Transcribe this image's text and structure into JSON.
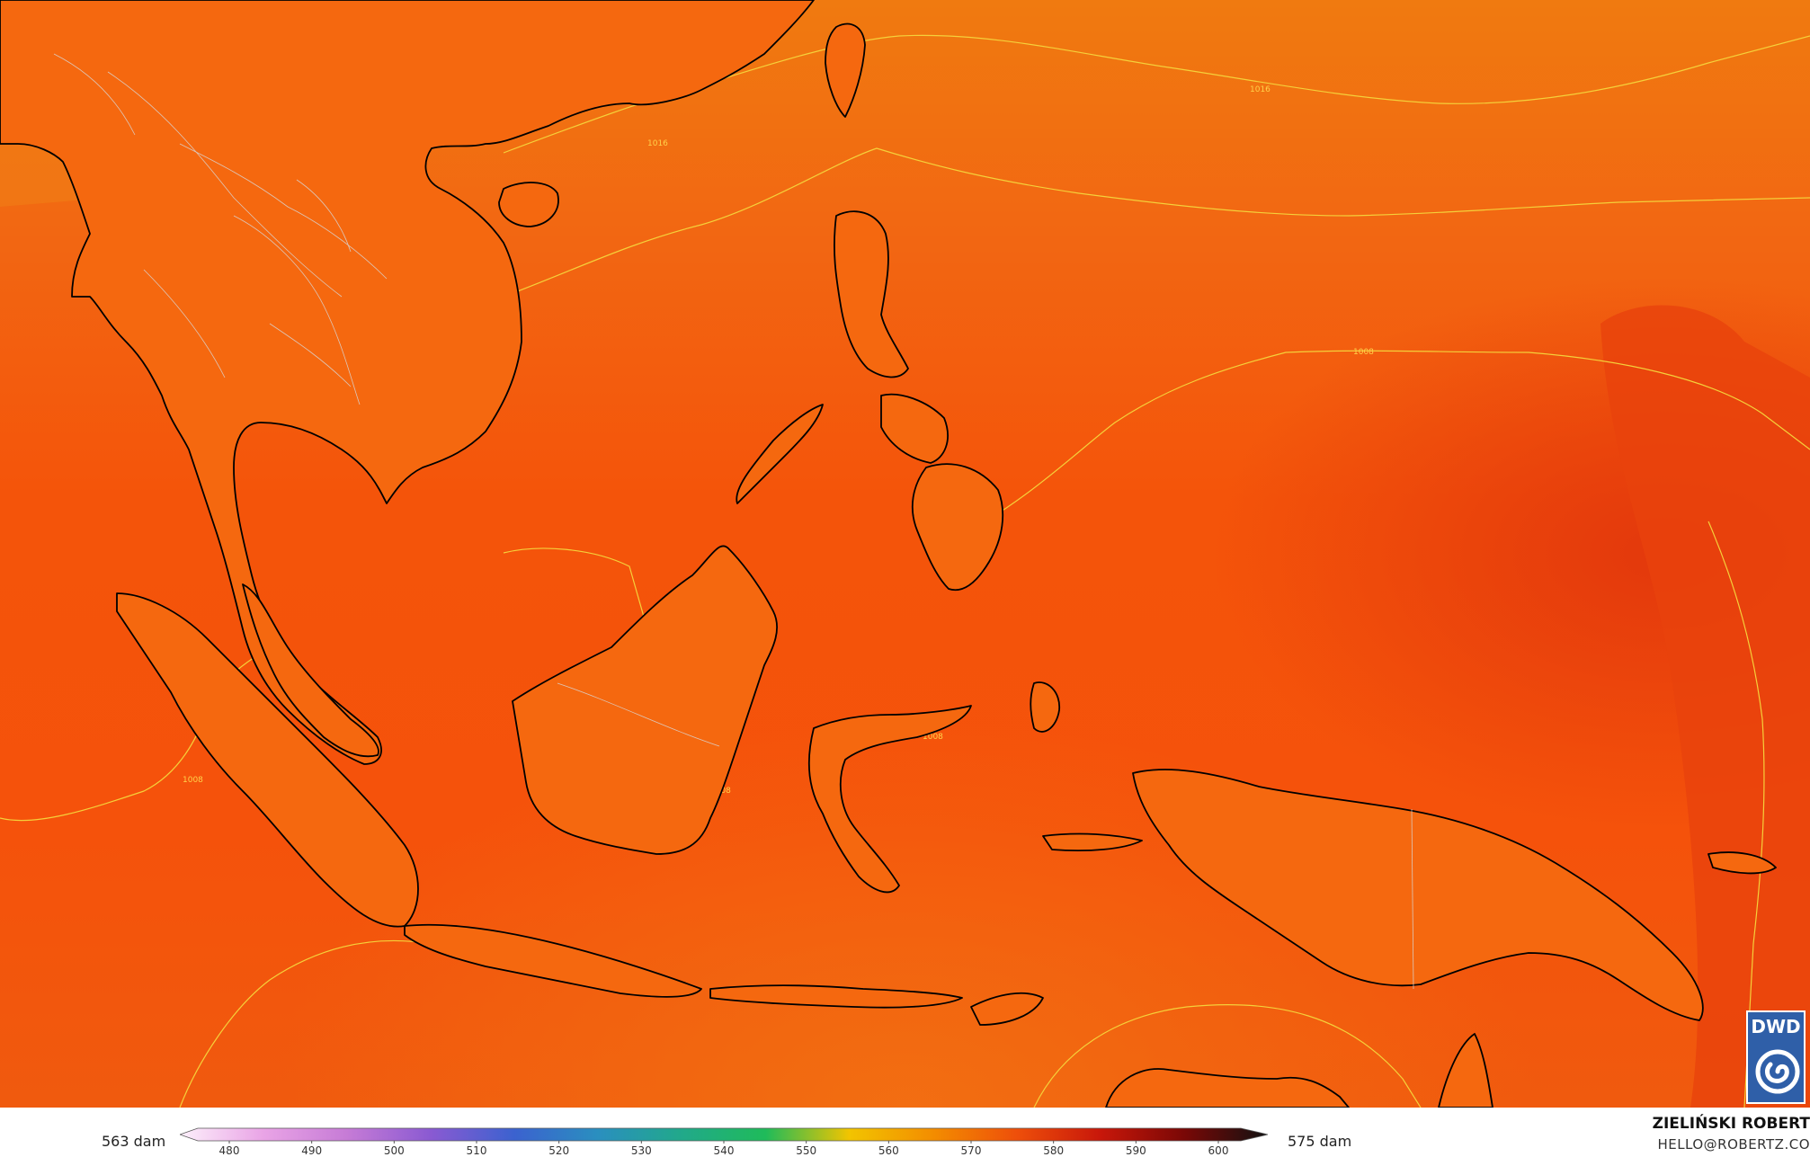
{
  "map": {
    "isobar_labels": [
      "1016",
      "1016",
      "1008",
      "1008",
      "1008",
      "1008",
      "1008",
      "1008"
    ],
    "colors": {
      "ocean_north": "#f07a10",
      "ocean_central": "#f4540a",
      "ocean_east_deep": "#e83a0c",
      "isobar_line": "#f5d03a",
      "coastline": "#000000",
      "border": "#d8d8d8"
    }
  },
  "logo": {
    "text": "DWD",
    "icon": "dwd-spiral-icon"
  },
  "legend": {
    "range_min": "563 dam",
    "range_max": "575 dam",
    "ticks": [
      "480",
      "490",
      "500",
      "510",
      "520",
      "530",
      "540",
      "550",
      "560",
      "570",
      "580",
      "590",
      "600"
    ],
    "stops": [
      "#fdf0fb",
      "#e9a4e6",
      "#c67bd6",
      "#8a5ad2",
      "#3b62cf",
      "#2a8fbf",
      "#21a98a",
      "#1fbb5a",
      "#f2c400",
      "#f38d00",
      "#ee4f0a",
      "#c8170a",
      "#7a0806",
      "#111111"
    ]
  },
  "author": {
    "name": "ZIELIŃSKI ROBERT",
    "email": "HELLO@ROBERTZ.CO"
  }
}
